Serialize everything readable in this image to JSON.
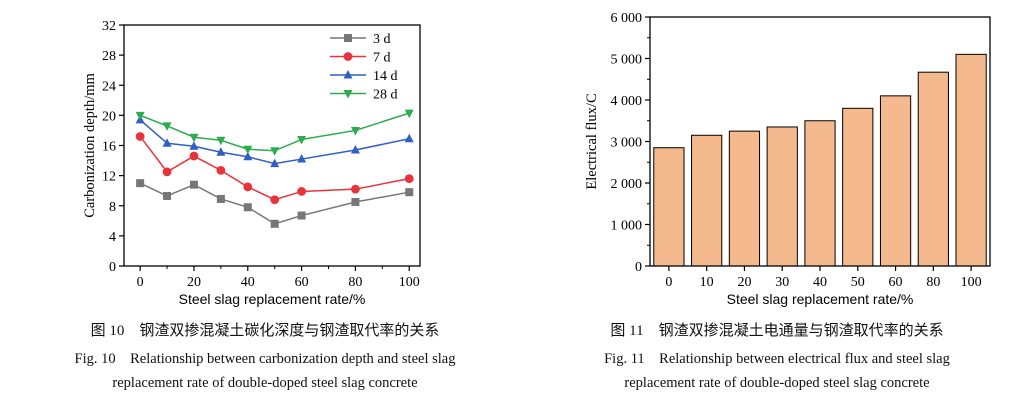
{
  "chart_data": [
    {
      "type": "line",
      "x": [
        0,
        10,
        20,
        30,
        40,
        50,
        60,
        80,
        100
      ],
      "series": [
        {
          "name": "3 d",
          "color": "#777777",
          "marker": "square",
          "values": [
            11.0,
            9.3,
            10.8,
            8.9,
            7.8,
            5.6,
            6.7,
            8.5,
            9.8
          ]
        },
        {
          "name": "7 d",
          "color": "#e8333a",
          "marker": "circle",
          "values": [
            17.2,
            12.5,
            14.6,
            12.7,
            10.5,
            8.8,
            9.9,
            10.2,
            11.6
          ]
        },
        {
          "name": "14 d",
          "color": "#2f5fc4",
          "marker": "triangle-up",
          "values": [
            19.4,
            16.3,
            15.9,
            15.1,
            14.5,
            13.6,
            14.2,
            15.4,
            16.9
          ]
        },
        {
          "name": "28 d",
          "color": "#2eab4e",
          "marker": "triangle-down",
          "values": [
            20.0,
            18.6,
            17.1,
            16.7,
            15.5,
            15.3,
            16.8,
            18.0,
            20.3
          ]
        }
      ],
      "xlabel": "Steel slag replacement rate/%",
      "ylabel": "Carbonization depth/mm",
      "xticks": [
        "0",
        "20",
        "40",
        "60",
        "80",
        "100"
      ],
      "yticks": [
        "0",
        "4",
        "8",
        "12",
        "16",
        "20",
        "24",
        "28",
        "32"
      ],
      "xlim": [
        -6,
        104
      ],
      "ylim": [
        0,
        32
      ],
      "legend_position": "top-right",
      "grid": false
    },
    {
      "type": "bar",
      "categories": [
        "0",
        "10",
        "20",
        "30",
        "40",
        "50",
        "60",
        "80",
        "100"
      ],
      "values": [
        2850,
        3150,
        3250,
        3350,
        3500,
        3800,
        4100,
        4670,
        5100
      ],
      "bar_color": "#f5b98e",
      "xlabel": "Steel slag replacement rate/%",
      "ylabel": "Electrical flux/C",
      "yticks": [
        "0",
        "1 000",
        "2 000",
        "3 000",
        "4 000",
        "5 000",
        "6 000"
      ],
      "ylim": [
        0,
        6000
      ],
      "grid": false
    }
  ],
  "captions": {
    "fig10": {
      "cn": "图 10　钢渣双掺混凝土碳化深度与钢渣取代率的关系",
      "en1": "Fig. 10　Relationship between carbonization depth and steel slag",
      "en2": "replacement rate of double-doped steel slag concrete"
    },
    "fig11": {
      "cn": "图 11　钢渣双掺混凝土电通量与钢渣取代率的关系",
      "en1": "Fig. 11　Relationship between electrical flux and steel slag",
      "en2": "replacement rate of double-doped steel slag concrete"
    }
  }
}
